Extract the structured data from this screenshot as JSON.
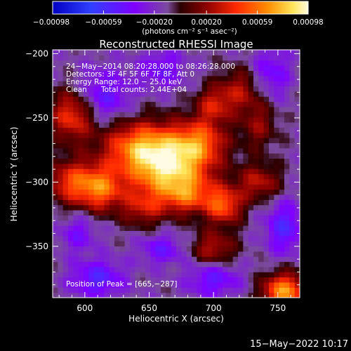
{
  "chart_data": {
    "type": "heatmap",
    "title": "Reconstructed RHESSI Image",
    "xlabel": "Heliocentric X (arcsec)",
    "ylabel": "Heliocentric Y (arcsec)",
    "xlim": [
      575,
      767
    ],
    "ylim": [
      -390,
      -197
    ],
    "x_ticks": [
      600,
      650,
      700,
      750
    ],
    "x_tick_labels": [
      "600",
      "650",
      "700",
      "750"
    ],
    "y_ticks": [
      -200,
      -250,
      -300,
      -350
    ],
    "y_tick_labels": [
      "−200",
      "−250",
      "−300",
      "−350"
    ],
    "colorbar": {
      "range": [
        -0.00098,
        0.00098
      ],
      "ticks": [
        -0.00098,
        -0.00059,
        -0.0002,
        0.0002,
        0.00059,
        0.00098
      ],
      "tick_labels": [
        "−0.00098",
        "−0.00059",
        "−0.00020",
        "0.00020",
        "0.00059",
        "0.00098"
      ],
      "unit_label": "(photons cm⁻² s⁻¹ asec⁻²)"
    },
    "annotations": {
      "time_range": "24−May−2014 08:20:28.000 to 08:26:28.000",
      "detectors": "Detectors: 3F 4F 5F 6F 7F 8F, Att 0",
      "energy_range": "Energy Range: 12.0 − 25.0 keV",
      "clean": "Clean",
      "total_counts": "Total counts: 2.44E+04",
      "peak_position": "Position of Peak = [665,−287]"
    },
    "peak": {
      "x": 665,
      "y": -287
    },
    "blobs": [
      {
        "x": 665,
        "y": -287,
        "sx": 22,
        "sy": 18,
        "v": 0.00095
      },
      {
        "x": 640,
        "y": -272,
        "sx": 20,
        "sy": 14,
        "v": 0.00055
      },
      {
        "x": 690,
        "y": -268,
        "sx": 14,
        "sy": 12,
        "v": 0.0005
      },
      {
        "x": 700,
        "y": -240,
        "sx": 10,
        "sy": 10,
        "v": 0.0004
      },
      {
        "x": 720,
        "y": -228,
        "sx": 12,
        "sy": 12,
        "v": 0.00035
      },
      {
        "x": 735,
        "y": -255,
        "sx": 10,
        "sy": 14,
        "v": 0.0003
      },
      {
        "x": 590,
        "y": -248,
        "sx": 12,
        "sy": 14,
        "v": 0.00055
      },
      {
        "x": 590,
        "y": -300,
        "sx": 14,
        "sy": 12,
        "v": 0.00055
      },
      {
        "x": 613,
        "y": -305,
        "sx": 12,
        "sy": 12,
        "v": 0.0006
      },
      {
        "x": 645,
        "y": -320,
        "sx": 12,
        "sy": 10,
        "v": 0.00035
      },
      {
        "x": 680,
        "y": -310,
        "sx": 14,
        "sy": 10,
        "v": 0.00045
      },
      {
        "x": 708,
        "y": -318,
        "sx": 10,
        "sy": 10,
        "v": 0.0006
      },
      {
        "x": 735,
        "y": -300,
        "sx": 12,
        "sy": 10,
        "v": 0.0004
      },
      {
        "x": 700,
        "y": -352,
        "sx": 12,
        "sy": 10,
        "v": 0.0004
      },
      {
        "x": 755,
        "y": -385,
        "sx": 12,
        "sy": 10,
        "v": 0.0008
      },
      {
        "x": 595,
        "y": -340,
        "sx": 10,
        "sy": 10,
        "v": -0.00025
      },
      {
        "x": 610,
        "y": -375,
        "sx": 14,
        "sy": 10,
        "v": -0.0004
      },
      {
        "x": 615,
        "y": -232,
        "sx": 14,
        "sy": 14,
        "v": -0.00035
      },
      {
        "x": 660,
        "y": -212,
        "sx": 12,
        "sy": 10,
        "v": -0.0003
      },
      {
        "x": 745,
        "y": -215,
        "sx": 10,
        "sy": 14,
        "v": -0.0003
      },
      {
        "x": 700,
        "y": -375,
        "sx": 14,
        "sy": 10,
        "v": -0.00035
      },
      {
        "x": 755,
        "y": -335,
        "sx": 10,
        "sy": 14,
        "v": -0.0004
      },
      {
        "x": 660,
        "y": -352,
        "sx": 12,
        "sy": 8,
        "v": -0.0003
      }
    ],
    "background_level": -0.00012
  },
  "timestamp": "15−May−2022 10:17",
  "colors": {
    "background": "#000000",
    "foreground": "#ffffff",
    "colormap": [
      "#0000c0",
      "#3040ff",
      "#7f00ff",
      "#7b4a9c",
      "#7a6a8a",
      "#2a0000",
      "#8b0000",
      "#ff2a00",
      "#ff8c00",
      "#ffe55a",
      "#fffbe0"
    ]
  }
}
